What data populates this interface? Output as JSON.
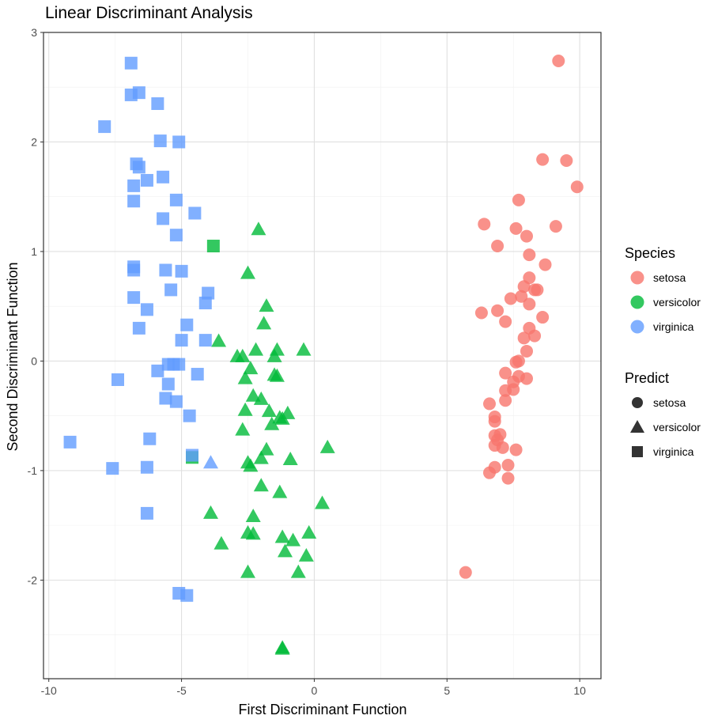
{
  "chart_data": {
    "type": "scatter",
    "title": "Linear Discriminant Analysis",
    "xlabel": "First Discriminant Function",
    "ylabel": "Second Discriminant Function",
    "xlim": [
      -10.2,
      10.8
    ],
    "ylim": [
      -2.9,
      3.0
    ],
    "x_ticks": [
      -10,
      -5,
      0,
      5,
      10
    ],
    "y_ticks": [
      -2,
      -1,
      0,
      1,
      2,
      3
    ],
    "x_tick_labels": [
      "-10",
      "-5",
      "0",
      "5",
      "10"
    ],
    "y_tick_labels": [
      "-2",
      "-1",
      "0",
      "1",
      "2",
      "3"
    ],
    "grid": true,
    "legend_position": "right",
    "legends": {
      "species": {
        "title": "Species",
        "items": [
          {
            "key": "setosa",
            "label": "setosa",
            "color": "#F8766D"
          },
          {
            "key": "versicolor",
            "label": "versicolor",
            "color": "#00BA38"
          },
          {
            "key": "virginica",
            "label": "virginica",
            "color": "#619CFF"
          }
        ]
      },
      "predict": {
        "title": "Predict",
        "items": [
          {
            "key": "setosa",
            "label": "setosa",
            "shape": "circle"
          },
          {
            "key": "versicolor",
            "label": "versicolor",
            "shape": "triangle"
          },
          {
            "key": "virginica",
            "label": "virginica",
            "shape": "square"
          }
        ]
      }
    },
    "series": [
      {
        "species": "setosa",
        "predict": "setosa",
        "points": [
          [
            9.2,
            2.74
          ],
          [
            8.6,
            1.84
          ],
          [
            9.5,
            1.83
          ],
          [
            9.9,
            1.59
          ],
          [
            7.7,
            1.47
          ],
          [
            6.4,
            1.25
          ],
          [
            7.6,
            1.21
          ],
          [
            8.0,
            1.14
          ],
          [
            9.1,
            1.23
          ],
          [
            6.9,
            1.05
          ],
          [
            8.1,
            0.97
          ],
          [
            8.7,
            0.88
          ],
          [
            8.1,
            0.76
          ],
          [
            7.9,
            0.68
          ],
          [
            8.3,
            0.65
          ],
          [
            8.4,
            0.65
          ],
          [
            7.4,
            0.57
          ],
          [
            7.8,
            0.59
          ],
          [
            8.1,
            0.52
          ],
          [
            6.9,
            0.46
          ],
          [
            6.3,
            0.44
          ],
          [
            8.6,
            0.4
          ],
          [
            7.2,
            0.36
          ],
          [
            8.1,
            0.3
          ],
          [
            7.9,
            0.21
          ],
          [
            8.3,
            0.23
          ],
          [
            8.0,
            0.09
          ],
          [
            7.7,
            0.0
          ],
          [
            7.6,
            -0.01
          ],
          [
            7.2,
            -0.11
          ],
          [
            7.7,
            -0.14
          ],
          [
            7.5,
            -0.19
          ],
          [
            8.0,
            -0.16
          ],
          [
            7.2,
            -0.27
          ],
          [
            7.5,
            -0.26
          ],
          [
            7.2,
            -0.36
          ],
          [
            6.6,
            -0.39
          ],
          [
            6.8,
            -0.51
          ],
          [
            6.8,
            -0.55
          ],
          [
            7.0,
            -0.67
          ],
          [
            6.8,
            -0.68
          ],
          [
            6.9,
            -0.72
          ],
          [
            6.8,
            -0.77
          ],
          [
            7.1,
            -0.79
          ],
          [
            7.6,
            -0.81
          ],
          [
            7.3,
            -0.95
          ],
          [
            6.8,
            -0.97
          ],
          [
            6.6,
            -1.02
          ],
          [
            7.3,
            -1.07
          ],
          [
            5.7,
            -1.93
          ]
        ]
      },
      {
        "species": "versicolor",
        "predict": "versicolor",
        "points": [
          [
            -2.1,
            1.2
          ],
          [
            -2.5,
            0.8
          ],
          [
            -1.8,
            0.5
          ],
          [
            -1.9,
            0.34
          ],
          [
            -3.6,
            0.18
          ],
          [
            -2.2,
            0.1
          ],
          [
            -1.4,
            0.1
          ],
          [
            -0.4,
            0.1
          ],
          [
            -1.5,
            0.04
          ],
          [
            -2.9,
            0.04
          ],
          [
            -2.7,
            0.04
          ],
          [
            -2.4,
            -0.07
          ],
          [
            -1.5,
            -0.13
          ],
          [
            -1.4,
            -0.14
          ],
          [
            -2.6,
            -0.16
          ],
          [
            -2.3,
            -0.32
          ],
          [
            -2.0,
            -0.35
          ],
          [
            -2.6,
            -0.45
          ],
          [
            -1.7,
            -0.46
          ],
          [
            -1.0,
            -0.48
          ],
          [
            -1.3,
            -0.52
          ],
          [
            -1.2,
            -0.53
          ],
          [
            -1.6,
            -0.58
          ],
          [
            -2.7,
            -0.63
          ],
          [
            -1.8,
            -0.81
          ],
          [
            -2.0,
            -0.89
          ],
          [
            -0.9,
            -0.9
          ],
          [
            -2.5,
            -0.93
          ],
          [
            -2.4,
            -0.96
          ],
          [
            0.5,
            -0.79
          ],
          [
            -2.0,
            -1.14
          ],
          [
            -1.3,
            -1.2
          ],
          [
            0.3,
            -1.3
          ],
          [
            -3.9,
            -1.39
          ],
          [
            -2.3,
            -1.42
          ],
          [
            -2.5,
            -1.57
          ],
          [
            -2.3,
            -1.58
          ],
          [
            -0.2,
            -1.57
          ],
          [
            -1.2,
            -1.61
          ],
          [
            -0.8,
            -1.64
          ],
          [
            -3.5,
            -1.67
          ],
          [
            -1.1,
            -1.74
          ],
          [
            -0.3,
            -1.78
          ],
          [
            -2.5,
            -1.93
          ],
          [
            -0.6,
            -1.93
          ],
          [
            -1.2,
            -2.62
          ],
          [
            -1.2,
            -2.63
          ]
        ]
      },
      {
        "species": "versicolor",
        "predict": "virginica",
        "points": [
          [
            -3.8,
            1.05
          ],
          [
            -4.6,
            -0.88
          ]
        ]
      },
      {
        "species": "virginica",
        "predict": "versicolor",
        "points": [
          [
            -3.9,
            -0.93
          ]
        ]
      },
      {
        "species": "virginica",
        "predict": "virginica",
        "points": [
          [
            -6.9,
            2.72
          ],
          [
            -6.6,
            2.45
          ],
          [
            -6.9,
            2.43
          ],
          [
            -5.9,
            2.35
          ],
          [
            -7.9,
            2.14
          ],
          [
            -5.8,
            2.01
          ],
          [
            -5.1,
            2.0
          ],
          [
            -6.7,
            1.8
          ],
          [
            -6.6,
            1.77
          ],
          [
            -6.3,
            1.65
          ],
          [
            -6.8,
            1.6
          ],
          [
            -5.7,
            1.68
          ],
          [
            -6.8,
            1.46
          ],
          [
            -5.2,
            1.47
          ],
          [
            -4.5,
            1.35
          ],
          [
            -5.7,
            1.3
          ],
          [
            -5.2,
            1.15
          ],
          [
            -6.8,
            0.86
          ],
          [
            -6.8,
            0.83
          ],
          [
            -5.6,
            0.83
          ],
          [
            -5.0,
            0.82
          ],
          [
            -5.4,
            0.65
          ],
          [
            -4.0,
            0.62
          ],
          [
            -4.1,
            0.53
          ],
          [
            -6.8,
            0.58
          ],
          [
            -6.3,
            0.47
          ],
          [
            -4.8,
            0.33
          ],
          [
            -6.6,
            0.3
          ],
          [
            -5.0,
            0.19
          ],
          [
            -4.1,
            0.19
          ],
          [
            -5.5,
            -0.03
          ],
          [
            -5.3,
            -0.03
          ],
          [
            -5.1,
            -0.03
          ],
          [
            -5.9,
            -0.09
          ],
          [
            -4.4,
            -0.12
          ],
          [
            -7.4,
            -0.17
          ],
          [
            -5.5,
            -0.21
          ],
          [
            -5.6,
            -0.34
          ],
          [
            -5.2,
            -0.37
          ],
          [
            -4.7,
            -0.5
          ],
          [
            -6.2,
            -0.71
          ],
          [
            -9.2,
            -0.74
          ],
          [
            -4.6,
            -0.86
          ],
          [
            -7.6,
            -0.98
          ],
          [
            -6.3,
            -0.97
          ],
          [
            -6.3,
            -1.39
          ],
          [
            -5.1,
            -2.12
          ],
          [
            -4.8,
            -2.14
          ]
        ]
      }
    ]
  }
}
